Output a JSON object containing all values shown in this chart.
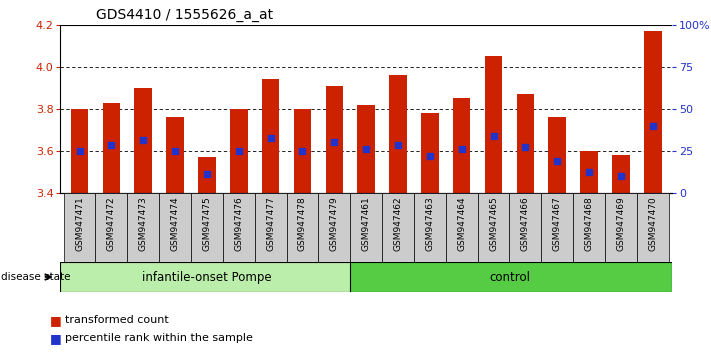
{
  "title": "GDS4410 / 1555626_a_at",
  "samples": [
    "GSM947471",
    "GSM947472",
    "GSM947473",
    "GSM947474",
    "GSM947475",
    "GSM947476",
    "GSM947477",
    "GSM947478",
    "GSM947479",
    "GSM947461",
    "GSM947462",
    "GSM947463",
    "GSM947464",
    "GSM947465",
    "GSM947466",
    "GSM947467",
    "GSM947468",
    "GSM947469",
    "GSM947470"
  ],
  "bar_values": [
    3.8,
    3.83,
    3.9,
    3.76,
    3.57,
    3.8,
    3.94,
    3.8,
    3.91,
    3.82,
    3.96,
    3.78,
    3.85,
    4.05,
    3.87,
    3.76,
    3.6,
    3.58,
    4.17
  ],
  "percentile_values": [
    3.6,
    3.63,
    3.65,
    3.6,
    3.492,
    3.6,
    3.662,
    3.6,
    3.642,
    3.61,
    3.63,
    3.578,
    3.61,
    3.67,
    3.62,
    3.552,
    3.5,
    3.48,
    3.72
  ],
  "group1_count": 9,
  "group2_count": 10,
  "group1_label": "infantile-onset Pompe",
  "group2_label": "control",
  "bar_color": "#CC2200",
  "dot_color": "#2233CC",
  "bar_bottom": 3.4,
  "ylim": [
    3.4,
    4.2
  ],
  "yticks": [
    3.4,
    3.6,
    3.8,
    4.0,
    4.2
  ],
  "right_yticks_pct": [
    0,
    25,
    50,
    75,
    100
  ],
  "group1_bg": "#BBEEAA",
  "group2_bg": "#55CC44",
  "sample_bg": "#CCCCCC",
  "legend_items": [
    "transformed count",
    "percentile rank within the sample"
  ],
  "legend_colors": [
    "#CC2200",
    "#2233CC"
  ]
}
